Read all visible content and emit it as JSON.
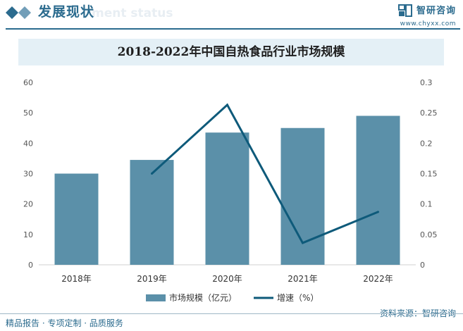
{
  "header": {
    "title": "发展现状",
    "subtitle": "ment status",
    "brand_name": "智研咨询",
    "brand_url": "www.chyxx.com"
  },
  "colors": {
    "accent": "#2b6b8e",
    "bar": "#5b90a9",
    "line": "#0e5a7a",
    "title_band": "#e4f0f6"
  },
  "footer": {
    "left": "精品报告 · 专项定制 · 品质服务",
    "right": "资料来源：智研咨询"
  },
  "chart_data": {
    "type": "bar",
    "title": "2018-2022年中国自热食品行业市场规模",
    "categories": [
      "2018年",
      "2019年",
      "2020年",
      "2021年",
      "2022年"
    ],
    "ylim": [
      0,
      60
    ],
    "yticks": [
      "0",
      "10",
      "20",
      "30",
      "40",
      "50",
      "60"
    ],
    "y2lim": [
      0,
      0.3
    ],
    "y2ticks": [
      "0",
      "0.05",
      "0.1",
      "0.15",
      "0.2",
      "0.25",
      "0.3"
    ],
    "series": [
      {
        "name": "市场规模（亿元）",
        "type": "bar",
        "axis": "left",
        "values": [
          30,
          34.5,
          43.5,
          45,
          49
        ]
      },
      {
        "name": "增速（%）",
        "type": "line",
        "axis": "right",
        "values": [
          null,
          0.15,
          0.263,
          0.036,
          0.087
        ]
      }
    ],
    "legend_position": "bottom",
    "grid": false
  }
}
